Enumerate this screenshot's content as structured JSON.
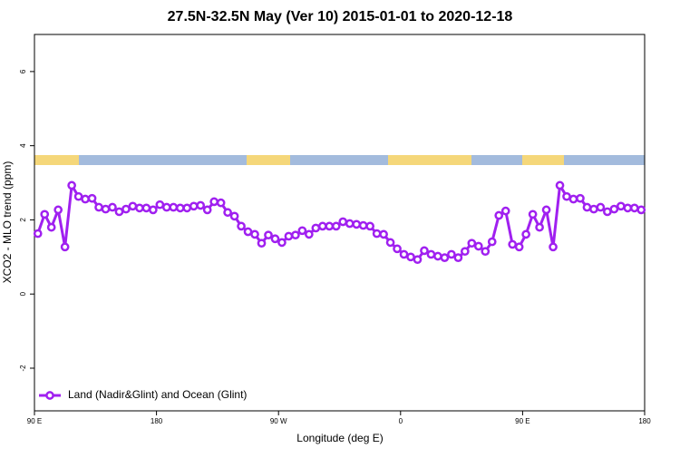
{
  "chart_data": {
    "type": "line",
    "title": "27.5N-32.5N May (Ver 10)   2015-01-01 to 2020-12-18",
    "x_label": "Longitude (deg E)",
    "y_label": "XCO2 - MLO trend (ppm)",
    "x": [
      92.5,
      97.5,
      102.5,
      107.5,
      112.5,
      117.5,
      122.5,
      127.5,
      132.5,
      137.5,
      142.5,
      147.5,
      152.5,
      157.5,
      162.5,
      167.5,
      172.5,
      177.5,
      182.5,
      187.5,
      192.5,
      197.5,
      202.5,
      207.5,
      212.5,
      217.5,
      222.5,
      227.5,
      232.5,
      237.5,
      242.5,
      247.5,
      252.5,
      257.5,
      262.5,
      267.5,
      272.5,
      277.5,
      282.5,
      287.5,
      292.5,
      297.5,
      302.5,
      307.5,
      312.5,
      317.5,
      322.5,
      327.5,
      332.5,
      337.5,
      342.5,
      347.5,
      352.5,
      357.5,
      362.5,
      367.5,
      372.5,
      377.5,
      382.5,
      387.5,
      392.5,
      397.5,
      402.5,
      407.5,
      412.5,
      417.5,
      422.5,
      427.5,
      432.5,
      437.5,
      442.5,
      447.5,
      452.5,
      457.5,
      462.5,
      467.5,
      472.5,
      477.5,
      482.5,
      487.5,
      492.5,
      497.5,
      502.5,
      507.5,
      512.5,
      517.5,
      522.5,
      527.5,
      532.5,
      537.5
    ],
    "series": [
      {
        "name": "Land (Nadir&Glint) and Ocean (Glint)",
        "color": "#a020f0",
        "values": [
          1.63,
          2.15,
          1.8,
          2.27,
          1.27,
          2.93,
          2.63,
          2.56,
          2.58,
          2.34,
          2.29,
          2.34,
          2.22,
          2.29,
          2.37,
          2.32,
          2.32,
          2.27,
          2.41,
          2.34,
          2.34,
          2.32,
          2.32,
          2.37,
          2.39,
          2.27,
          2.49,
          2.46,
          2.2,
          2.1,
          1.83,
          1.68,
          1.61,
          1.37,
          1.59,
          1.49,
          1.39,
          1.56,
          1.59,
          1.71,
          1.61,
          1.78,
          1.83,
          1.83,
          1.83,
          1.95,
          1.9,
          1.88,
          1.85,
          1.83,
          1.63,
          1.61,
          1.39,
          1.22,
          1.07,
          1.0,
          0.93,
          1.17,
          1.07,
          1.02,
          0.98,
          1.07,
          0.98,
          1.15,
          1.37,
          1.29,
          1.15,
          1.41,
          2.12,
          2.24,
          1.34,
          1.27,
          1.61,
          2.15,
          1.8,
          2.27,
          1.27,
          2.93,
          2.63,
          2.56,
          2.58,
          2.34,
          2.29,
          2.34,
          2.22,
          2.29,
          2.37,
          2.32,
          2.32,
          2.27
        ]
      }
    ],
    "xlim": [
      90,
      540
    ],
    "xticks": [
      {
        "value": 90,
        "label": "90 E"
      },
      180,
      {
        "value": 270,
        "label": "90 W"
      },
      {
        "value": 360,
        "label": "0"
      },
      {
        "value": 450,
        "label": "90 E"
      },
      {
        "value": 540,
        "label": "180"
      }
    ],
    "ylim": [
      -3.15,
      7
    ],
    "yticks": [
      -2,
      0,
      2,
      4,
      6
    ],
    "legend": "bottom-left"
  }
}
